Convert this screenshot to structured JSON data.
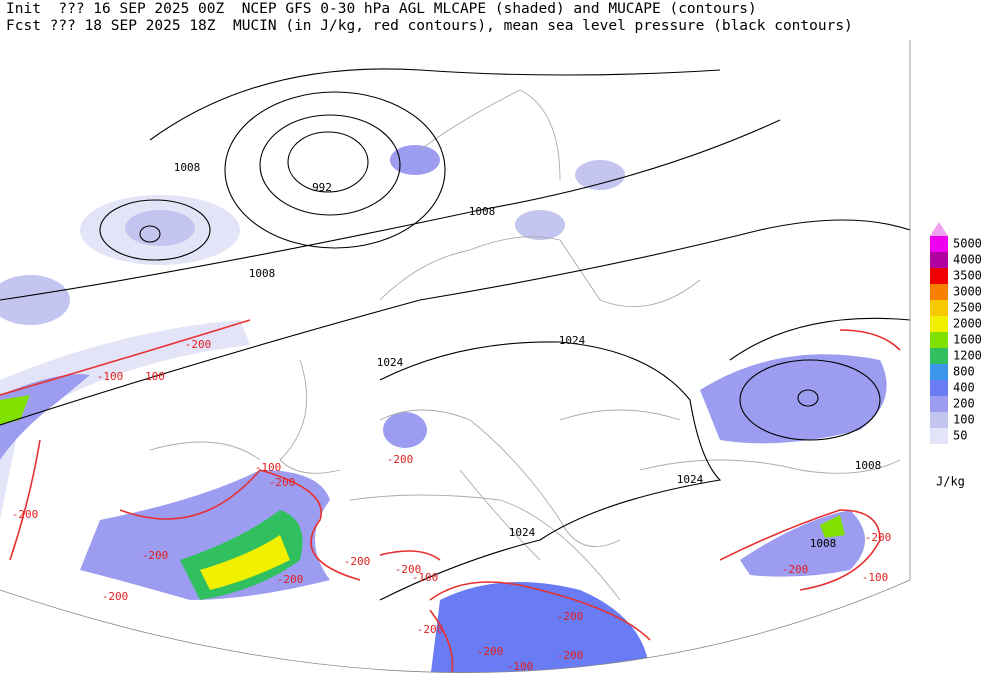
{
  "header": {
    "line1": "Init  ??? 16 SEP 2025 00Z  NCEP GFS 0-30 hPa AGL MLCAPE (shaded) and MUCAPE (contours)",
    "line2": "Fcst ??? 18 SEP 2025 18Z  MUCIN (in J/kg, red contours), mean sea level pressure (black contours)"
  },
  "pressure_labels": [
    "1008",
    "992",
    "1008",
    "1008",
    "1024",
    "1024",
    "1024",
    "1024",
    "1008",
    "1008"
  ],
  "cin_labels": [
    "-200",
    "-100",
    "100",
    "-100",
    "-200",
    "-200",
    "-200",
    "-200",
    "-200",
    "-200",
    "-100",
    "-200",
    "-200",
    "-200",
    "-200",
    "-200",
    "-100",
    "-200",
    "-100",
    "-200",
    "-200"
  ],
  "colorbar": {
    "unit": "J/kg",
    "levels": [
      {
        "label": "50",
        "color": "#e4e4f8"
      },
      {
        "label": "100",
        "color": "#c4c4f0"
      },
      {
        "label": "200",
        "color": "#9c9cf0"
      },
      {
        "label": "400",
        "color": "#6a7cf4"
      },
      {
        "label": "800",
        "color": "#3c96ec"
      },
      {
        "label": "1200",
        "color": "#30c060"
      },
      {
        "label": "1600",
        "color": "#80e000"
      },
      {
        "label": "2000",
        "color": "#f0f000"
      },
      {
        "label": "2500",
        "color": "#f8c800"
      },
      {
        "label": "3000",
        "color": "#f88000"
      },
      {
        "label": "3500",
        "color": "#f00000"
      },
      {
        "label": "4000",
        "color": "#b000a0"
      },
      {
        "label": "5000",
        "color": "#f000f0"
      }
    ],
    "top_color": "#f0a0f0"
  }
}
